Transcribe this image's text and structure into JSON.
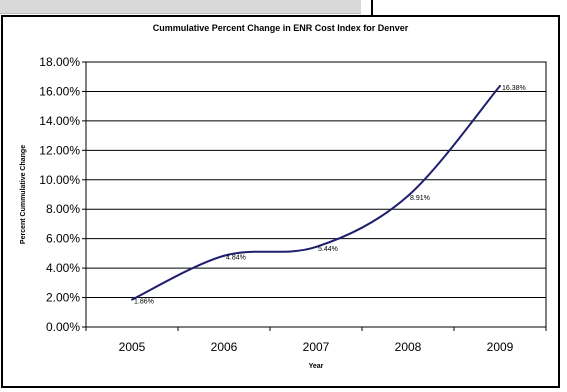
{
  "chart_data": {
    "type": "line",
    "title": "Cummulative Percent Change in ENR Cost Index for Denver",
    "xlabel": "Year",
    "ylabel": "Percent Cummulative Change",
    "categories": [
      "2005",
      "2006",
      "2007",
      "2008",
      "2009"
    ],
    "series": [
      {
        "values": [
          1.86,
          4.84,
          5.44,
          8.91,
          16.38
        ],
        "labels": [
          "1.86%",
          "4.84%",
          "5.44%",
          "8.91%",
          "16.38%"
        ],
        "color": "#1f1f6e"
      }
    ],
    "ylim": [
      0,
      18
    ],
    "yticks": [
      "0.00%",
      "2.00%",
      "4.00%",
      "6.00%",
      "8.00%",
      "10.00%",
      "12.00%",
      "14.00%",
      "16.00%",
      "18.00%"
    ],
    "grid": true,
    "legend": "none",
    "smooth": true
  }
}
